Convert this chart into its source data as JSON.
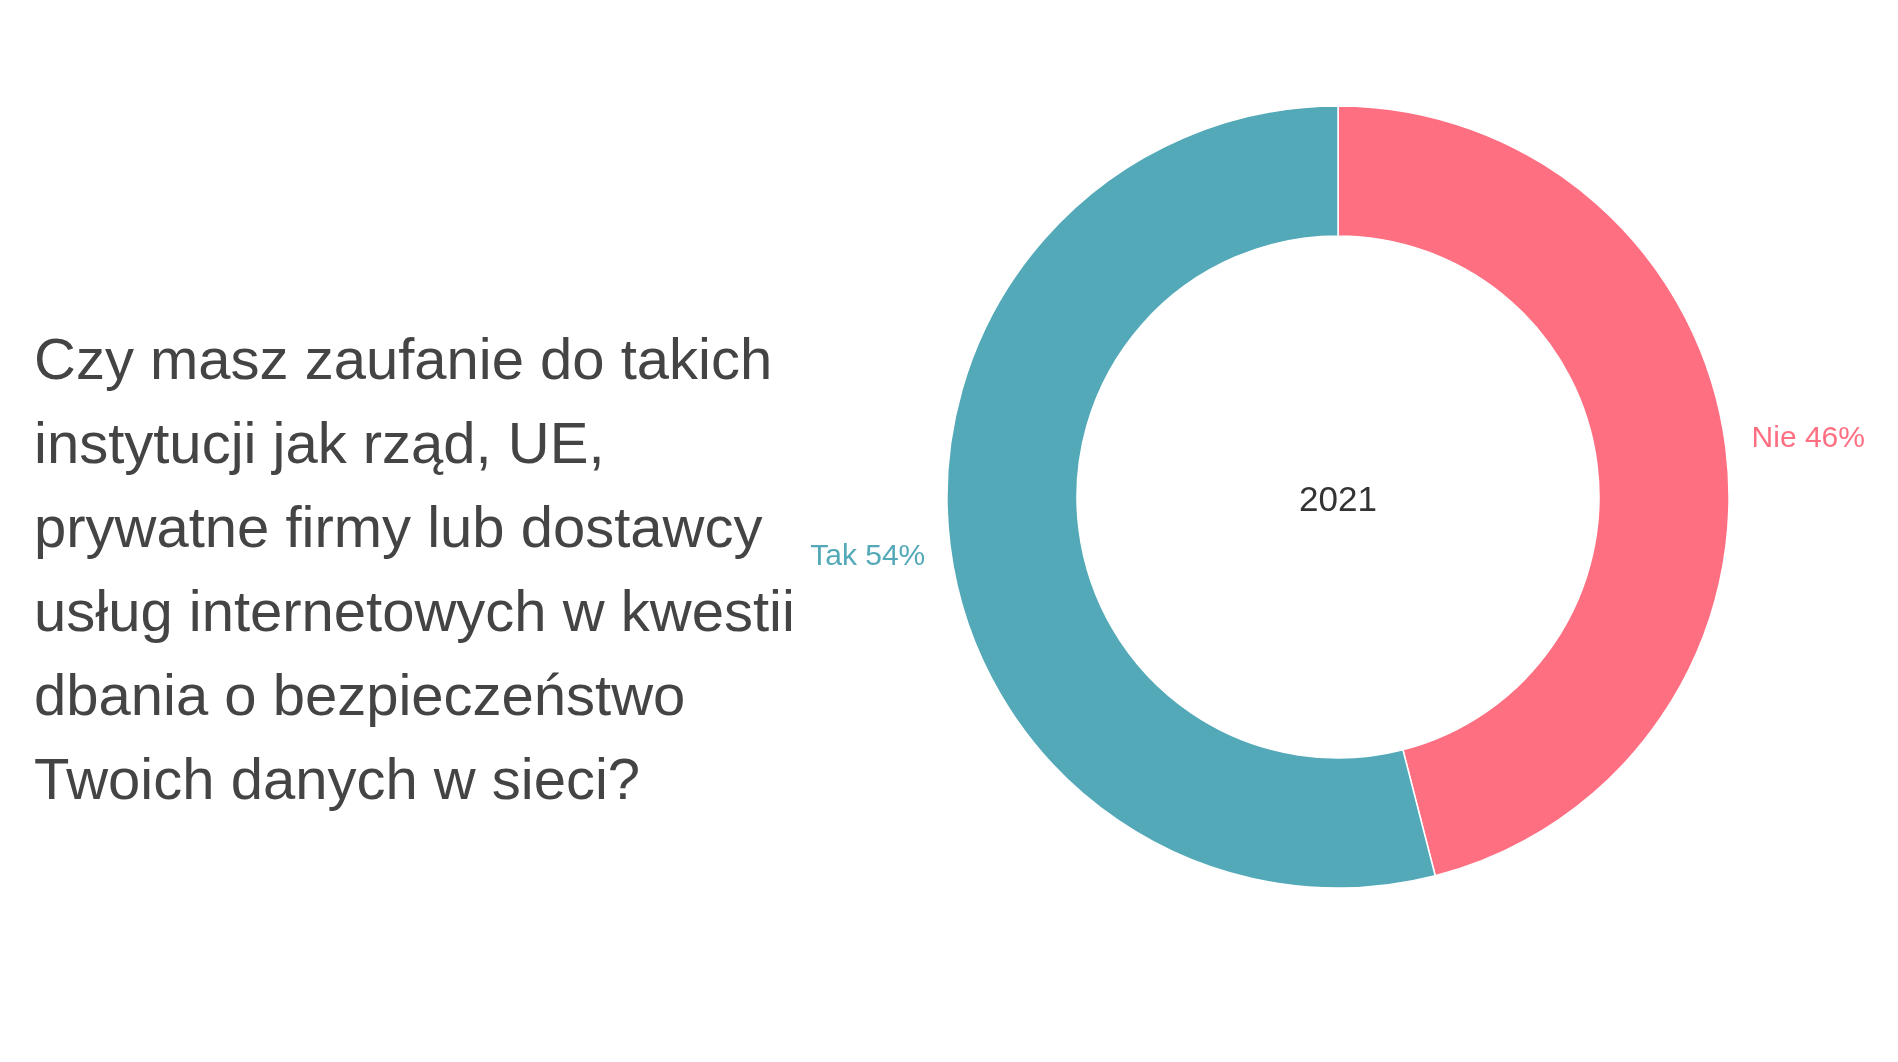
{
  "chart_data": {
    "type": "donut",
    "title": "Czy masz zaufanie do takich instytucji jak rząd, UE, prywatne firmy lub dostawcy usług internetowych w kwestii dbania o bezpieczeństwo Twoich danych w sieci?",
    "categories": [
      "Nie",
      "Tak"
    ],
    "values": [
      46,
      54
    ],
    "colors": [
      "#ff6f82",
      "#53a9b8"
    ],
    "value_labels": [
      "46%",
      "54%"
    ],
    "annotations": [
      "2021"
    ]
  }
}
